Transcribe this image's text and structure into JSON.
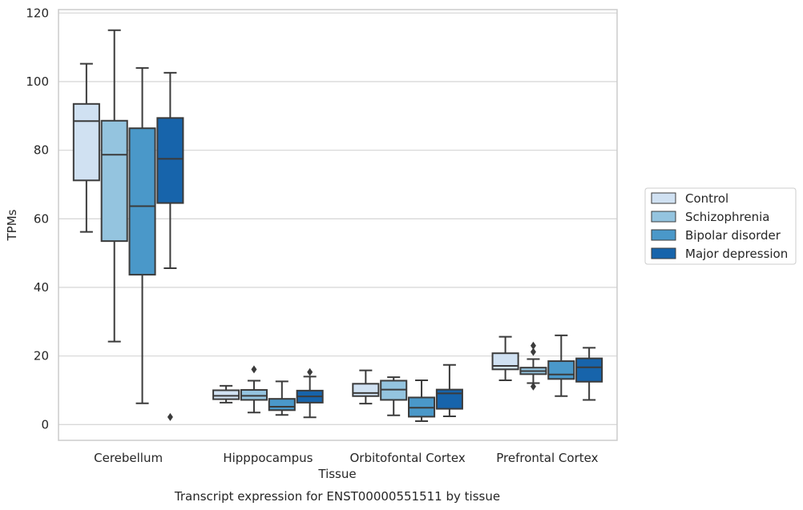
{
  "chart_data": {
    "type": "boxplot",
    "title": "",
    "caption": "Transcript expression for ENST00000551511 by tissue",
    "xlabel": "Tissue",
    "ylabel": "TPMs",
    "ylim": [
      -4.6,
      121
    ],
    "yticks": [
      0,
      20,
      40,
      60,
      80,
      100,
      120
    ],
    "grid": "horizontal",
    "legend_position": "right",
    "categories": [
      "Cerebellum",
      "Hipppocampus",
      "Orbitofontal Cortex",
      "Prefrontal Cortex"
    ],
    "series": [
      {
        "name": "Control",
        "color": "#d0e1f2",
        "boxes": [
          {
            "whisker_low": 56.2,
            "q1": 71.2,
            "median": 88.5,
            "q3": 93.5,
            "whisker_high": 105.2,
            "outliers": []
          },
          {
            "whisker_low": 6.4,
            "q1": 7.4,
            "median": 8.4,
            "q3": 10.0,
            "whisker_high": 11.3,
            "outliers": []
          },
          {
            "whisker_low": 6.1,
            "q1": 8.3,
            "median": 9.2,
            "q3": 11.9,
            "whisker_high": 15.8,
            "outliers": []
          },
          {
            "whisker_low": 12.9,
            "q1": 16.1,
            "median": 17.1,
            "q3": 20.8,
            "whisker_high": 25.6,
            "outliers": []
          }
        ]
      },
      {
        "name": "Schizophrenia",
        "color": "#94c4df",
        "boxes": [
          {
            "whisker_low": 24.2,
            "q1": 53.5,
            "median": 78.7,
            "q3": 88.6,
            "whisker_high": 115.0,
            "outliers": []
          },
          {
            "whisker_low": 3.5,
            "q1": 7.2,
            "median": 8.4,
            "q3": 10.1,
            "whisker_high": 12.8,
            "outliers": [
              16.1
            ]
          },
          {
            "whisker_low": 2.7,
            "q1": 7.2,
            "median": 10.2,
            "q3": 12.8,
            "whisker_high": 13.8,
            "outliers": []
          },
          {
            "whisker_low": 12.1,
            "q1": 14.7,
            "median": 15.6,
            "q3": 16.6,
            "whisker_high": 19.1,
            "outliers": [
              11.1,
              21.2,
              23.0
            ]
          }
        ]
      },
      {
        "name": "Bipolar disorder",
        "color": "#4a98c9",
        "boxes": [
          {
            "whisker_low": 6.2,
            "q1": 43.7,
            "median": 63.7,
            "q3": 86.4,
            "whisker_high": 104.0,
            "outliers": []
          },
          {
            "whisker_low": 2.8,
            "q1": 4.2,
            "median": 5.2,
            "q3": 7.5,
            "whisker_high": 12.6,
            "outliers": []
          },
          {
            "whisker_low": 1.0,
            "q1": 2.3,
            "median": 4.9,
            "q3": 7.9,
            "whisker_high": 12.9,
            "outliers": []
          },
          {
            "whisker_low": 8.3,
            "q1": 13.3,
            "median": 14.6,
            "q3": 18.5,
            "whisker_high": 26.0,
            "outliers": []
          }
        ]
      },
      {
        "name": "Major depression",
        "color": "#1764ab",
        "boxes": [
          {
            "whisker_low": 45.6,
            "q1": 64.6,
            "median": 77.5,
            "q3": 89.4,
            "whisker_high": 102.6,
            "outliers": [
              2.2
            ]
          },
          {
            "whisker_low": 2.1,
            "q1": 6.4,
            "median": 8.2,
            "q3": 9.9,
            "whisker_high": 14.0,
            "outliers": [
              15.3
            ]
          },
          {
            "whisker_low": 2.4,
            "q1": 4.6,
            "median": 9.1,
            "q3": 10.2,
            "whisker_high": 17.4,
            "outliers": []
          },
          {
            "whisker_low": 7.2,
            "q1": 12.5,
            "median": 16.7,
            "q3": 19.3,
            "whisker_high": 22.4,
            "outliers": []
          }
        ]
      }
    ]
  }
}
